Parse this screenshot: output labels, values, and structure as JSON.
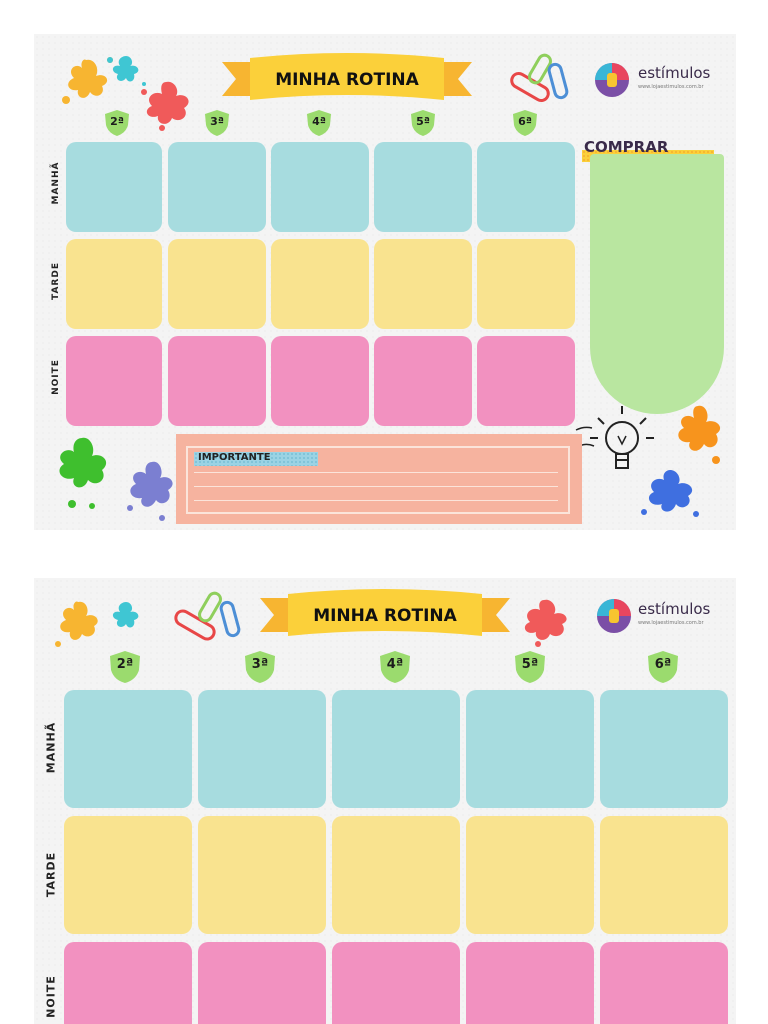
{
  "sheet1": {
    "title": "MINHA ROTINA",
    "days": [
      "2ª",
      "3ª",
      "4ª",
      "5ª",
      "6ª"
    ],
    "rows": [
      "MANHÃ",
      "TARDE",
      "NOITE"
    ],
    "shopping_label": "COMPRAR",
    "important_label": "IMPORTANTE",
    "brand_name": "estímulos",
    "brand_url": "www.lojaestimulos.com.br"
  },
  "sheet2": {
    "title": "MINHA ROTINA",
    "days": [
      "2ª",
      "3ª",
      "4ª",
      "5ª",
      "6ª"
    ],
    "rows": [
      "MANHÃ",
      "TARDE",
      "NOITE"
    ],
    "brand_name": "estímulos",
    "brand_url": "www.lojaestimulos.com.br"
  },
  "colors": {
    "morning": "#a7dcdf",
    "afternoon": "#f9e38f",
    "night": "#f291c0",
    "day_badge": "#9bdb6e",
    "ribbon": "#fbd03a",
    "shopping_panel": "#b9e6a0",
    "important_box": "#f6b39f"
  },
  "icons": [
    "paint-splash-icon",
    "paperclip-icon",
    "light-bulb-icon",
    "brain-logo-icon",
    "ribbon-banner-icon"
  ]
}
